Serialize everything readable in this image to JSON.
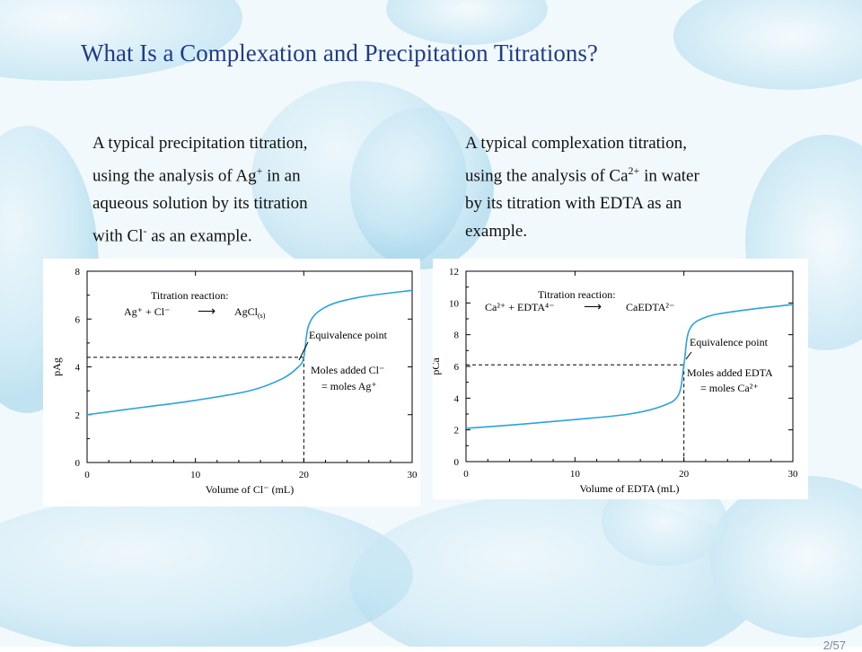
{
  "slide": {
    "title": "What Is a Complexation and Precipitation Titrations?",
    "page_number": "2/57"
  },
  "left_text": {
    "line1": "A typical precipitation titration,",
    "line2_pre": "using the analysis of Ag",
    "line2_sup": "+",
    "line2_post": " in an",
    "line3": "aqueous solution by its titration",
    "line4_pre": "with Cl",
    "line4_sup": "-",
    "line4_post": " as an example."
  },
  "right_text": {
    "line1": "A typical complexation titration,",
    "line2_pre": "using the analysis of Ca",
    "line2_sup": "2+",
    "line2_post": " in water",
    "line3": "by its titration with EDTA as an",
    "line4": "example."
  },
  "colors": {
    "title": "#1f3c88",
    "curve": "#2aa3dc",
    "axis": "#000000"
  },
  "chart_data": [
    {
      "type": "line",
      "xlabel": "Volume of Cl⁻ (mL)",
      "ylabel": "pAg",
      "xlim": [
        0,
        30
      ],
      "ylim": [
        0,
        8
      ],
      "xticks": [
        "0",
        "10",
        "20",
        "30"
      ],
      "yticks": [
        "0",
        "2",
        "4",
        "6",
        "8"
      ],
      "series": [
        {
          "x": [
            0,
            5,
            10,
            15,
            18,
            19.5,
            20,
            20.5,
            22,
            25,
            30
          ],
          "y": [
            2.0,
            2.3,
            2.6,
            3.0,
            3.5,
            4.0,
            4.4,
            5.8,
            6.5,
            6.9,
            7.2
          ]
        }
      ],
      "equivalence": {
        "x": 20,
        "y": 4.4
      },
      "annotations": {
        "reaction_title": "Titration reaction:",
        "reaction_lhs": "Ag⁺ + Cl⁻",
        "reaction_arrow": "⟶",
        "reaction_rhs": "AgCl",
        "reaction_rhs_sub": "(s)",
        "equivalence_label": "Equivalence point",
        "moles_line1": "Moles added Cl⁻",
        "moles_line2": "= moles Ag⁺"
      }
    },
    {
      "type": "line",
      "xlabel": "Volume of EDTA (mL)",
      "ylabel": "pCa",
      "xlim": [
        0,
        30
      ],
      "ylim": [
        0,
        12
      ],
      "xticks": [
        "0",
        "10",
        "20",
        "30"
      ],
      "yticks": [
        "0",
        "2",
        "4",
        "6",
        "8",
        "10",
        "12"
      ],
      "series": [
        {
          "x": [
            0,
            5,
            10,
            15,
            18,
            19.5,
            20,
            20.5,
            22,
            25,
            30
          ],
          "y": [
            2.1,
            2.35,
            2.65,
            3.0,
            3.5,
            4.2,
            6.1,
            8.3,
            9.1,
            9.5,
            9.9
          ]
        }
      ],
      "equivalence": {
        "x": 20,
        "y": 6.1
      },
      "annotations": {
        "reaction_title": "Titration reaction:",
        "reaction_lhs": "Ca²⁺ + EDTA⁴⁻",
        "reaction_arrow": "⟶",
        "reaction_rhs": "CaEDTA²⁻",
        "equivalence_label": "Equivalence point",
        "moles_line1": "Moles added EDTA",
        "moles_line2": "= moles Ca²⁺"
      }
    }
  ]
}
